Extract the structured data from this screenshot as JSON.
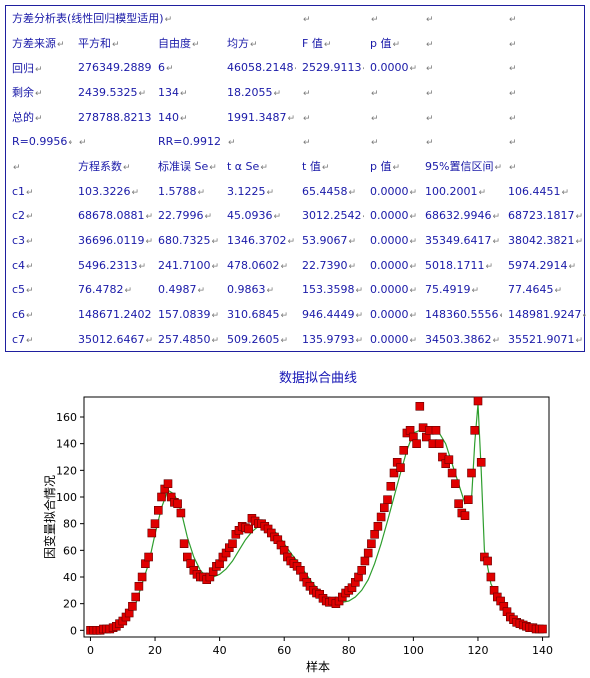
{
  "table": {
    "rows": [
      [
        "方差分析表(线性回归模型适用)",
        "",
        "",
        "",
        "",
        "",
        "",
        ""
      ],
      [
        "方差来源",
        "平方和",
        "自由度",
        "均方",
        "F 值",
        "p 值",
        "",
        ""
      ],
      [
        "回归",
        "276349.2889",
        "6",
        "46058.2148",
        "2529.9113",
        "0.0000",
        "",
        ""
      ],
      [
        "剩余",
        "2439.5325",
        "134",
        "18.2055",
        "",
        "",
        "",
        ""
      ],
      [
        "总的",
        "278788.8213",
        "140",
        "1991.3487",
        "",
        "",
        "",
        ""
      ],
      [
        "R=0.9956",
        "",
        "RR=0.9912",
        "",
        "",
        "",
        "",
        ""
      ],
      [
        "",
        "方程系数",
        "标准误 Se",
        "t α Se",
        "t 值",
        "p 值",
        "95%置信区间",
        ""
      ],
      [
        "c1",
        "103.3226",
        "1.5788",
        "3.1225",
        "65.4458",
        "0.0000",
        "100.2001",
        "106.4451"
      ],
      [
        "c2",
        "68678.0881",
        "22.7996",
        "45.0936",
        "3012.2542",
        "0.0000",
        "68632.9946",
        "68723.1817"
      ],
      [
        "c3",
        "36696.0119",
        "680.7325",
        "1346.3702",
        "53.9067",
        "0.0000",
        "35349.6417",
        "38042.3821"
      ],
      [
        "c4",
        "5496.2313",
        "241.7100",
        "478.0602",
        "22.7390",
        "0.0000",
        "5018.1711",
        "5974.2914"
      ],
      [
        "c5",
        "76.4782",
        "0.4987",
        "0.9863",
        "153.3598",
        "0.0000",
        "75.4919",
        "77.4645"
      ],
      [
        "c6",
        "148671.2402",
        "157.0839",
        "310.6845",
        "946.4449",
        "0.0000",
        "148360.5556",
        "148981.9247"
      ],
      [
        "c7",
        "35012.6467",
        "257.4850",
        "509.2605",
        "135.9793",
        "0.0000",
        "34503.3862",
        "35521.9071"
      ]
    ],
    "cell_mark": "↵"
  },
  "chart_data": {
    "type": "scatter",
    "title": "数据拟合曲线",
    "xlabel": "样本",
    "ylabel": "因变量拟合情况",
    "xlim": [
      -2,
      142
    ],
    "ylim": [
      -5,
      175
    ],
    "xticks": [
      0,
      20,
      40,
      60,
      80,
      100,
      120,
      140
    ],
    "yticks": [
      0,
      20,
      40,
      60,
      80,
      100,
      120,
      140,
      160
    ],
    "grid": false,
    "series": [
      {
        "kind": "observed-points",
        "color": "#e00000",
        "x": [
          0,
          1,
          2,
          3,
          4,
          5,
          6,
          7,
          8,
          9,
          10,
          11,
          12,
          13,
          14,
          15,
          16,
          17,
          18,
          19,
          20,
          21,
          22,
          23,
          24,
          25,
          26,
          27,
          28,
          29,
          30,
          31,
          32,
          33,
          34,
          35,
          36,
          37,
          38,
          39,
          40,
          41,
          42,
          43,
          44,
          45,
          46,
          47,
          48,
          49,
          50,
          51,
          52,
          53,
          54,
          55,
          56,
          57,
          58,
          59,
          60,
          61,
          62,
          63,
          64,
          65,
          66,
          67,
          68,
          69,
          70,
          71,
          72,
          73,
          74,
          75,
          76,
          77,
          78,
          79,
          80,
          81,
          82,
          83,
          84,
          85,
          86,
          87,
          88,
          89,
          90,
          91,
          92,
          93,
          94,
          95,
          96,
          97,
          98,
          99,
          100,
          101,
          102,
          103,
          104,
          105,
          106,
          107,
          108,
          109,
          110,
          111,
          112,
          113,
          114,
          115,
          116,
          117,
          118,
          119,
          120,
          121,
          122,
          123,
          124,
          125,
          126,
          127,
          128,
          129,
          130,
          131,
          132,
          133,
          134,
          135,
          136,
          137,
          138,
          139,
          140
        ],
        "y": [
          0,
          0,
          0,
          0,
          1,
          1,
          1,
          2,
          3,
          5,
          7,
          10,
          13,
          18,
          25,
          33,
          40,
          50,
          55,
          73,
          80,
          90,
          100,
          106,
          110,
          100,
          96,
          95,
          88,
          65,
          55,
          50,
          45,
          42,
          40,
          40,
          38,
          40,
          44,
          48,
          50,
          55,
          58,
          62,
          65,
          72,
          75,
          78,
          77,
          76,
          84,
          82,
          80,
          80,
          78,
          76,
          73,
          70,
          68,
          64,
          60,
          55,
          52,
          50,
          48,
          45,
          40,
          36,
          33,
          30,
          28,
          27,
          24,
          22,
          21,
          22,
          20,
          22,
          25,
          28,
          30,
          32,
          36,
          40,
          45,
          52,
          58,
          65,
          72,
          78,
          85,
          92,
          98,
          108,
          118,
          126,
          122,
          135,
          148,
          150,
          145,
          140,
          168,
          152,
          145,
          150,
          140,
          150,
          140,
          130,
          125,
          128,
          118,
          110,
          95,
          88,
          86,
          98,
          118,
          150,
          172,
          126,
          55,
          52,
          40,
          30,
          25,
          22,
          18,
          14,
          10,
          8,
          6,
          5,
          4,
          3,
          2,
          2,
          1,
          1,
          1
        ]
      },
      {
        "kind": "fitted-line",
        "color": "#2e9e2e",
        "x": [
          0,
          5,
          10,
          14,
          16,
          18,
          20,
          22,
          24,
          26,
          28,
          30,
          32,
          34,
          36,
          38,
          40,
          42,
          44,
          46,
          48,
          50,
          52,
          54,
          56,
          58,
          60,
          62,
          64,
          66,
          68,
          70,
          72,
          74,
          76,
          78,
          80,
          82,
          84,
          86,
          88,
          90,
          92,
          94,
          96,
          98,
          100,
          102,
          104,
          106,
          108,
          110,
          112,
          114,
          116,
          118,
          119,
          120,
          121,
          122,
          124,
          126,
          128,
          130,
          134,
          140
        ],
        "y": [
          0,
          1,
          5,
          20,
          35,
          50,
          72,
          92,
          105,
          102,
          90,
          70,
          55,
          45,
          40,
          40,
          42,
          46,
          52,
          60,
          68,
          74,
          78,
          78,
          76,
          72,
          65,
          58,
          52,
          45,
          38,
          32,
          27,
          24,
          22,
          21,
          22,
          25,
          30,
          38,
          50,
          65,
          82,
          100,
          118,
          135,
          148,
          150,
          150,
          150,
          148,
          140,
          125,
          110,
          95,
          98,
          140,
          170,
          120,
          60,
          35,
          25,
          18,
          12,
          6,
          2
        ]
      }
    ]
  }
}
